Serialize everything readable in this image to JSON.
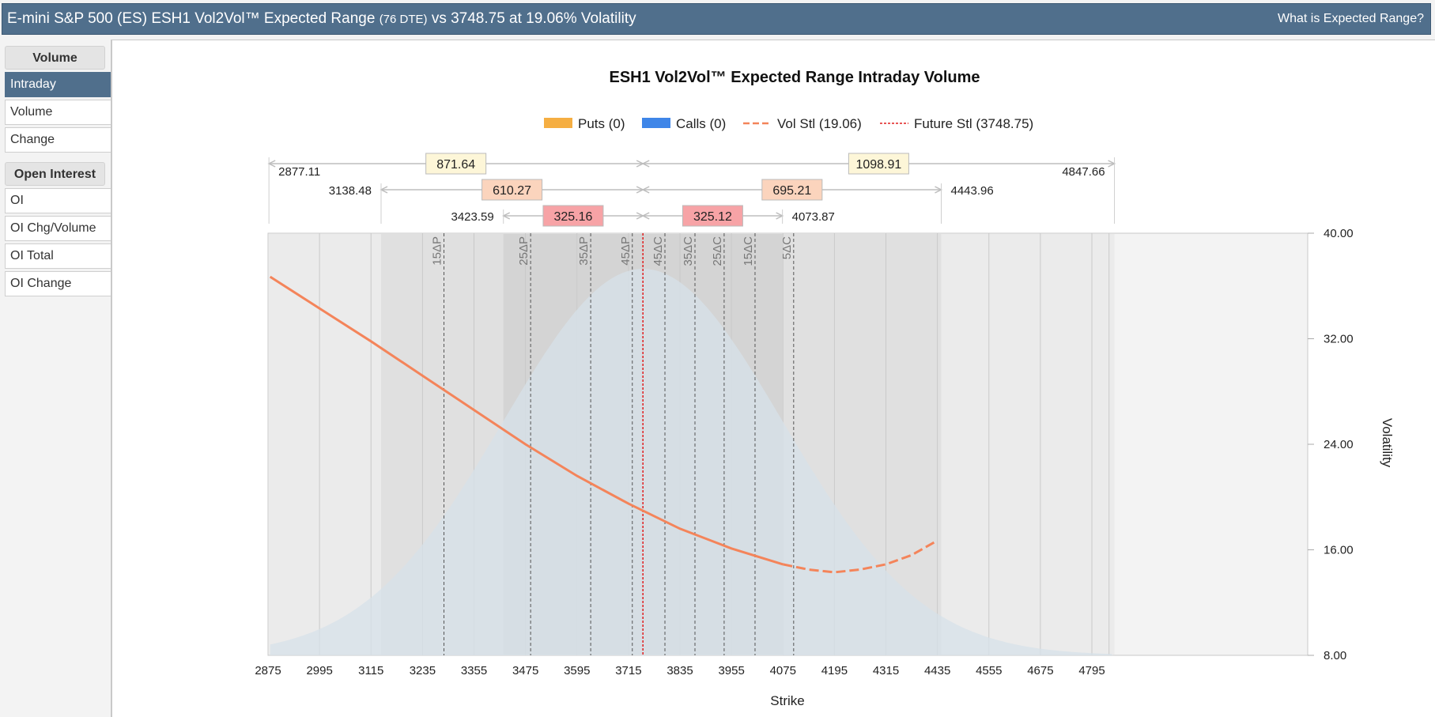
{
  "header": {
    "title_main": "E-mini S&P 500 (ES) ESH1 Vol2Vol™ Expected Range",
    "title_dte": "(76 DTE)",
    "title_rest": "vs 3748.75 at 19.06% Volatility",
    "help_link": "What is Expected Range?"
  },
  "sidebar": {
    "volume_header": "Volume",
    "volume_items": [
      {
        "label": "Intraday",
        "active": true
      },
      {
        "label": "Volume",
        "active": false
      },
      {
        "label": "Change",
        "active": false
      }
    ],
    "oi_header": "Open Interest",
    "oi_items": [
      {
        "label": "OI",
        "active": false
      },
      {
        "label": "OI Chg/Volume",
        "active": false
      },
      {
        "label": "OI Total",
        "active": false
      },
      {
        "label": "OI Change",
        "active": false
      }
    ]
  },
  "colors": {
    "header_bg": "#506f8c",
    "puts": "#f5ae42",
    "calls": "#3f86e8",
    "vol_curve": "#f4845a",
    "future_line": "#e01f1f",
    "distribution": "#d7e1ea",
    "band_outer": "#ebebeb",
    "band_mid": "#e0e0e0",
    "band_inner": "#d4d4d4",
    "range_outer_label": "#fdf6d8",
    "range_mid_label": "#fbd4bd",
    "range_inner_label": "#f7a3a6"
  },
  "chart_data": {
    "type": "line",
    "title": "ESH1 Vol2Vol™ Expected Range Intraday Volume",
    "xlabel": "Strike",
    "ylabel": "Volatility",
    "xlim": [
      2875,
      4847.66
    ],
    "ylim": [
      8,
      40
    ],
    "x_ticks": [
      2875,
      2995,
      3115,
      3235,
      3355,
      3475,
      3595,
      3715,
      3835,
      3955,
      4075,
      4195,
      4315,
      4435,
      4555,
      4675,
      4795
    ],
    "y_ticks": [
      "40.00",
      "32.00",
      "24.00",
      "16.00",
      "8.00"
    ],
    "legend": [
      {
        "label": "Puts (0)",
        "kind": "bar",
        "color": "#f5ae42"
      },
      {
        "label": "Calls (0)",
        "kind": "bar",
        "color": "#3f86e8"
      },
      {
        "label": "Vol Stl (19.06)",
        "kind": "dash",
        "color": "#f4845a"
      },
      {
        "label": "Future Stl (3748.75)",
        "kind": "dot",
        "color": "#e01f1f"
      }
    ],
    "legend_position": "top",
    "future_price": 3748.75,
    "grid": true,
    "expected_ranges": [
      {
        "low": 2877.11,
        "high": 4847.66,
        "down": "871.64",
        "up": "1098.91",
        "low_label": "2877.11",
        "high_label": "4847.66"
      },
      {
        "low": 3138.48,
        "high": 4443.96,
        "down": "610.27",
        "up": "695.21",
        "low_label": "3138.48",
        "high_label": "4443.96"
      },
      {
        "low": 3423.59,
        "high": 4073.87,
        "down": "325.16",
        "up": "325.12",
        "low_label": "3423.59",
        "high_label": "4073.87"
      }
    ],
    "delta_lines": [
      {
        "label": "15ΔP",
        "x": 3285
      },
      {
        "label": "25ΔP",
        "x": 3487
      },
      {
        "label": "35ΔP",
        "x": 3627
      },
      {
        "label": "45ΔP",
        "x": 3724
      },
      {
        "label": "45ΔC",
        "x": 3800
      },
      {
        "label": "35ΔC",
        "x": 3870
      },
      {
        "label": "25ΔC",
        "x": 3938
      },
      {
        "label": "15ΔC",
        "x": 4010
      },
      {
        "label": "5ΔC",
        "x": 4100
      }
    ],
    "vol_curve": {
      "name": "Vol Stl",
      "x": [
        2880,
        2995,
        3115,
        3235,
        3355,
        3475,
        3595,
        3715,
        3835,
        3955,
        4075,
        4135,
        4195,
        4255,
        4315,
        4375,
        4435
      ],
      "y": [
        36.7,
        34.3,
        31.8,
        29.2,
        26.6,
        24.0,
        21.6,
        19.5,
        17.6,
        16.1,
        14.9,
        14.5,
        14.3,
        14.5,
        14.9,
        15.6,
        16.7
      ],
      "solid_until": 4075
    },
    "distribution": {
      "mean": 3748.75,
      "sd": 325,
      "peak_y": 37.3,
      "base_y": 8
    }
  }
}
